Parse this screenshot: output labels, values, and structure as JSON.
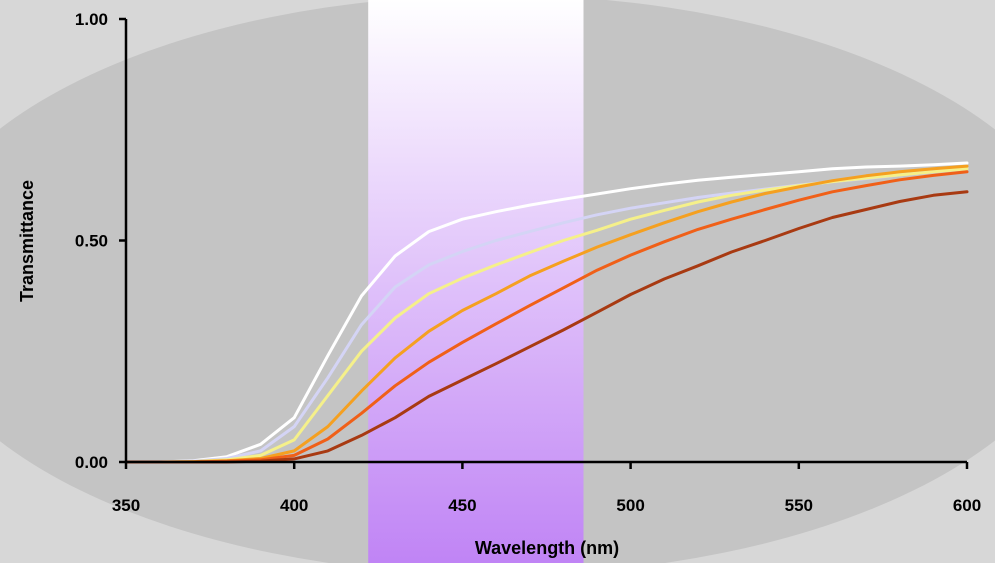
{
  "chart_data": {
    "type": "line",
    "title": "",
    "xlabel": "Wavelength (nm)",
    "ylabel": "Transmittance",
    "xlim": [
      350,
      600
    ],
    "ylim": [
      0,
      1
    ],
    "x_ticks": [
      350,
      400,
      450,
      500,
      550,
      600
    ],
    "x_tick_labels": [
      "350",
      "400",
      "450",
      "500",
      "550",
      "600"
    ],
    "y_ticks": [
      0,
      0.5,
      1
    ],
    "y_tick_labels": [
      "0.00",
      "0.50",
      "1.00"
    ],
    "grid": false,
    "legend": "none",
    "highlight_band": {
      "x_range": [
        422,
        486
      ],
      "color_top": "#ffffff",
      "color_bottom": "#c084f5"
    },
    "colors": {
      "plot_background": "#c4c4c4",
      "page_background": "#d7d7d7",
      "axis": "#000000"
    },
    "x": [
      350,
      360,
      370,
      380,
      390,
      400,
      410,
      420,
      430,
      440,
      450,
      460,
      470,
      480,
      490,
      500,
      510,
      520,
      530,
      540,
      550,
      560,
      570,
      580,
      590,
      600
    ],
    "series": [
      {
        "color": "#ffffff",
        "values": [
          0,
          0,
          0.003,
          0.012,
          0.04,
          0.1,
          0.24,
          0.375,
          0.465,
          0.52,
          0.548,
          0.565,
          0.58,
          0.593,
          0.605,
          0.617,
          0.627,
          0.636,
          0.643,
          0.649,
          0.655,
          0.662,
          0.666,
          0.668,
          0.671,
          0.675
        ]
      },
      {
        "color": "#d4d4f5",
        "values": [
          0,
          0,
          0.002,
          0.008,
          0.025,
          0.08,
          0.19,
          0.31,
          0.395,
          0.445,
          0.475,
          0.5,
          0.52,
          0.54,
          0.558,
          0.573,
          0.585,
          0.597,
          0.607,
          0.616,
          0.625,
          0.633,
          0.64,
          0.648,
          0.655,
          0.663
        ]
      },
      {
        "color": "#f5f08a",
        "values": [
          0,
          0,
          0.001,
          0.005,
          0.015,
          0.05,
          0.15,
          0.25,
          0.325,
          0.38,
          0.415,
          0.445,
          0.473,
          0.5,
          0.523,
          0.548,
          0.568,
          0.587,
          0.602,
          0.614,
          0.624,
          0.633,
          0.641,
          0.648,
          0.655,
          0.662
        ]
      },
      {
        "color": "#f5a020",
        "values": [
          0,
          0,
          0.001,
          0.003,
          0.008,
          0.025,
          0.08,
          0.16,
          0.235,
          0.295,
          0.342,
          0.38,
          0.42,
          0.453,
          0.485,
          0.513,
          0.54,
          0.565,
          0.587,
          0.606,
          0.621,
          0.635,
          0.646,
          0.655,
          0.662,
          0.668
        ]
      },
      {
        "color": "#f06018",
        "values": [
          0,
          0,
          0,
          0.002,
          0.005,
          0.015,
          0.052,
          0.11,
          0.172,
          0.225,
          0.27,
          0.312,
          0.353,
          0.393,
          0.433,
          0.467,
          0.497,
          0.525,
          0.548,
          0.57,
          0.591,
          0.61,
          0.624,
          0.637,
          0.647,
          0.655
        ]
      },
      {
        "color": "#a83a12",
        "values": [
          0,
          0,
          0,
          0,
          0.002,
          0.007,
          0.025,
          0.06,
          0.1,
          0.148,
          0.185,
          0.222,
          0.26,
          0.298,
          0.338,
          0.378,
          0.413,
          0.443,
          0.474,
          0.5,
          0.527,
          0.552,
          0.57,
          0.588,
          0.602,
          0.61
        ]
      }
    ]
  }
}
